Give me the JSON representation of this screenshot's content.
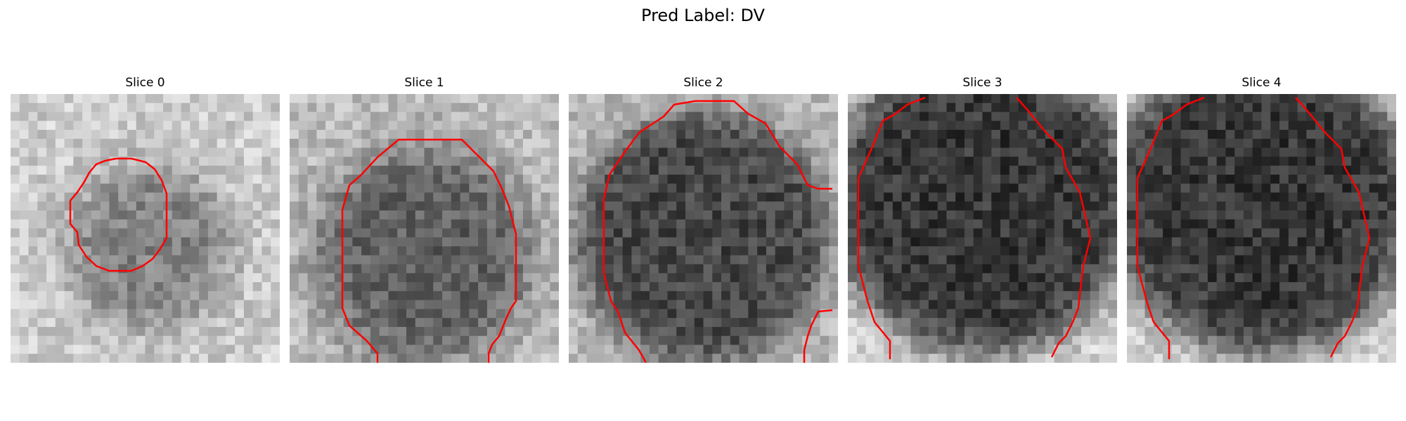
{
  "figure": {
    "suptitle": "Pred Label: DV"
  },
  "panels": [
    {
      "title": "Slice 0"
    },
    {
      "title": "Slice 1"
    },
    {
      "title": "Slice 2"
    },
    {
      "title": "Slice 3"
    },
    {
      "title": "Slice 4"
    }
  ],
  "colors": {
    "contour": "#ff0000"
  }
}
